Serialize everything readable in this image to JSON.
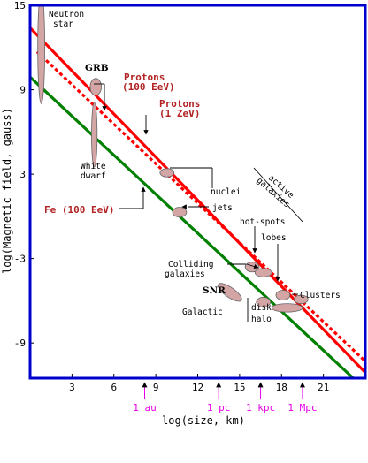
{
  "chart_data": {
    "type": "line",
    "xlabel": "log(size, km)",
    "ylabel": "log(Magnetic field, gauss)",
    "xlim": [
      0,
      24
    ],
    "ylim": [
      -11.5,
      15
    ],
    "x_ticks": [
      3,
      6,
      9,
      12,
      15,
      18,
      21
    ],
    "y_ticks": [
      15,
      9,
      3,
      -3,
      -9
    ],
    "series": [
      {
        "name": "Protons (100 EeV)",
        "color": "#ff0000",
        "style": "solid",
        "x": [
          0,
          24
        ],
        "y": [
          13.4,
          -11.1
        ]
      },
      {
        "name": "Protons (1 ZeV)",
        "color": "#ff0000",
        "style": "dotted",
        "x": [
          0.5,
          24
        ],
        "y": [
          11.7,
          -10.3
        ]
      },
      {
        "name": "Fe (100 EeV)",
        "color": "#008000",
        "style": "solid",
        "x": [
          0,
          24
        ],
        "y": [
          9.9,
          -12.3
        ]
      }
    ],
    "objects": [
      {
        "label": "Neutron star",
        "x": 0.8,
        "y": 12.0,
        "rx": 0.25,
        "ry": 4.0
      },
      {
        "label": "GRB",
        "x": 4.7,
        "y": 9.2,
        "rx": 0.4,
        "ry": 0.6
      },
      {
        "label": "White dwarf",
        "x": 4.6,
        "y": 5.8,
        "rx": 0.2,
        "ry": 2.3
      },
      {
        "label": "nuclei",
        "x": 9.8,
        "y": 3.1,
        "rx": 0.5,
        "ry": 0.3
      },
      {
        "label": "jets",
        "x": 10.7,
        "y": 0.3,
        "rx": 0.5,
        "ry": 0.35
      },
      {
        "label": "hot-spots",
        "x": 15.9,
        "y": -3.6,
        "rx": 0.5,
        "ry": 0.35
      },
      {
        "label": "lobes",
        "x": 16.7,
        "y": -4.0,
        "rx": 0.6,
        "ry": 0.3
      },
      {
        "label": "Colliding galaxies",
        "x": 18.1,
        "y": -5.6,
        "rx": 0.5,
        "ry": 0.35
      },
      {
        "label": "SNR",
        "x": 14.3,
        "y": -5.4,
        "rx": 1.0,
        "ry": 0.35,
        "rot": 35
      },
      {
        "label": "disk",
        "x": 16.7,
        "y": -6.1,
        "rx": 0.5,
        "ry": 0.35
      },
      {
        "label": "halo",
        "x": 18.4,
        "y": -6.5,
        "rx": 1.1,
        "ry": 0.3
      },
      {
        "label": "Clusters",
        "x": 19.4,
        "y": -5.9,
        "rx": 0.5,
        "ry": 0.3
      }
    ],
    "scale_marks": [
      {
        "label": "1 au",
        "x": 8.2
      },
      {
        "label": "1 pc",
        "x": 13.5
      },
      {
        "label": "1 kpc",
        "x": 16.5
      },
      {
        "label": "1 Mpc",
        "x": 19.5
      }
    ],
    "annotations": {
      "neutron_star": [
        "Neutron",
        "star"
      ],
      "grb": "GRB",
      "protons_100": [
        "Protons",
        "(100 EeV)"
      ],
      "protons_1z": [
        "Protons",
        "(1 ZeV)"
      ],
      "white_dwarf": [
        "White",
        "dwarf"
      ],
      "fe": "Fe (100 EeV)",
      "nuclei": "nuclei",
      "jets": "jets",
      "hot_spots": "hot-spots",
      "lobes": "lobes",
      "active_galaxies": [
        "active",
        "galaxies"
      ],
      "colliding": [
        "Colliding",
        "galaxies"
      ],
      "snr": "SNR",
      "clusters": "Clusters",
      "galactic": "Galactic",
      "disk": "disk",
      "halo": "halo"
    }
  }
}
